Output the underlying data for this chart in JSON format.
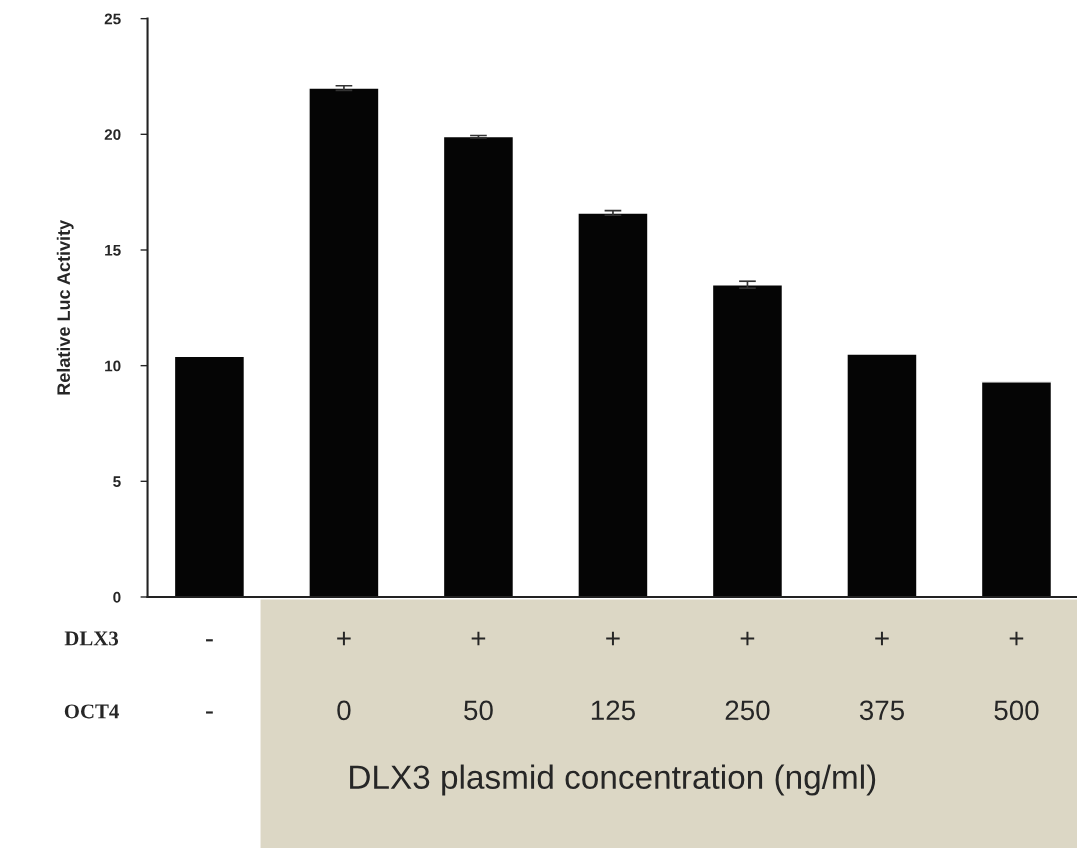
{
  "chart_data": {
    "type": "bar",
    "ylabel": "Relative Luc Activity",
    "xlabel": "DLX3 plasmid concentration (ng/ml)",
    "categories": [
      "-\n-",
      "+\n0",
      "+\n50",
      "+\n125",
      "+\n250",
      "+\n375",
      "+\n500"
    ],
    "values": [
      10.4,
      22.0,
      19.9,
      16.6,
      13.5,
      10.5,
      9.3
    ],
    "errors": [
      null,
      0.1,
      0.05,
      0.1,
      0.15,
      null,
      null
    ],
    "color": "#050505",
    "ylim": [
      0,
      25
    ],
    "yticks": [
      0,
      5,
      10,
      15,
      20,
      25
    ],
    "annotations": [
      "DLX3",
      "OCT4"
    ],
    "grid": false
  }
}
